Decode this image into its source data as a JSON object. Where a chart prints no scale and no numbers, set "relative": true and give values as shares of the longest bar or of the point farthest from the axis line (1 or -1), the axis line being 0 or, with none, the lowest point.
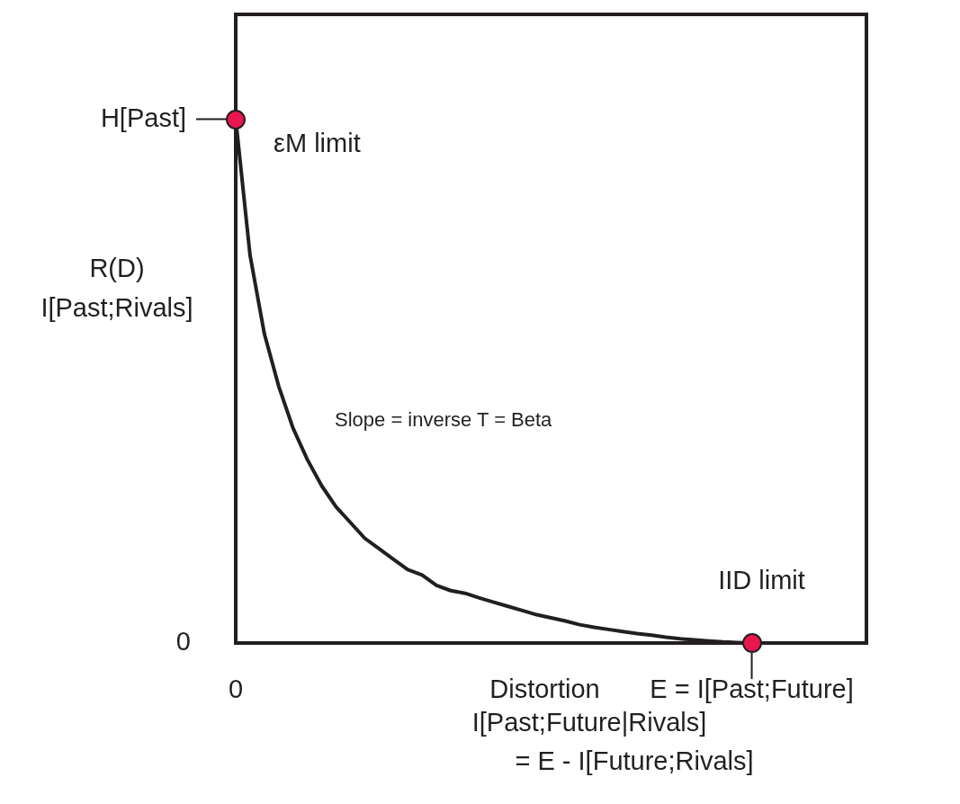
{
  "chart_data": {
    "type": "line",
    "relative": true,
    "xlabel": "Distortion",
    "ylabel": "R(D)\nI[Past;Rivals]",
    "grid": false,
    "legend": false,
    "categories": [
      null,
      null,
      null,
      null,
      null,
      null,
      null,
      null,
      null,
      null,
      null,
      null,
      null,
      null,
      null,
      null,
      null,
      null,
      null,
      null,
      null,
      null,
      null,
      null,
      null,
      null,
      null,
      null,
      null,
      null,
      null,
      null,
      null,
      null,
      null,
      null,
      null,
      null,
      null,
      null,
      null,
      null,
      null,
      null,
      null
    ],
    "series": [
      {
        "color": "#231f20",
        "marker": "none",
        "values": [
          1,
          0.74,
          0.59,
          0.49,
          0.41,
          0.35,
          0.3,
          0.26,
          0.23,
          0.2,
          0.18,
          0.16,
          0.14,
          0.13,
          0.11,
          0.1,
          0.095,
          0.086,
          0.078,
          0.07,
          0.062,
          0.054,
          0.048,
          0.042,
          0.035,
          0.03,
          0.026,
          0.022,
          0.018,
          0.015,
          0.011,
          0.008,
          0.006,
          0.004,
          0.002,
          0.001,
          0,
          null,
          null,
          null,
          null,
          null,
          null,
          null,
          null
        ]
      }
    ],
    "annotations": [
      "H[Past]",
      "0",
      "0",
      "E = I[Past;Future]",
      "εM limit",
      "IID limit",
      "Slope = inverse T = Beta",
      "I[Past;Future|Rivals]\n= E - I[Future;Rivals]"
    ]
  }
}
